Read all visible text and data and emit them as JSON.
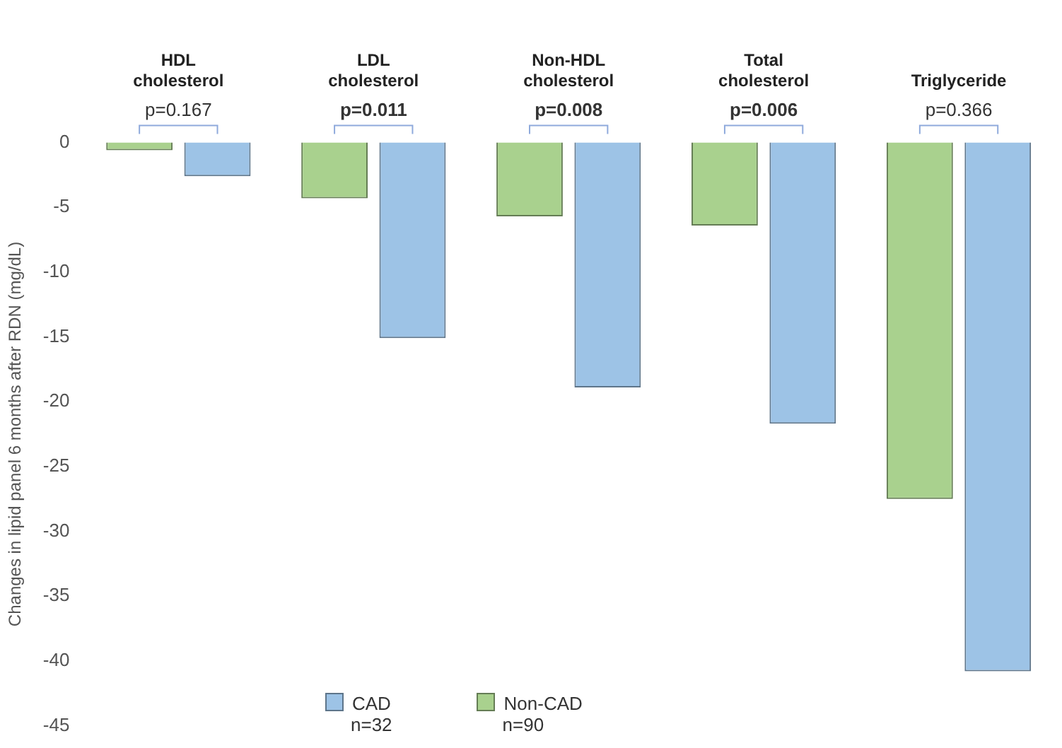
{
  "chart_data": {
    "type": "bar",
    "ylabel": "Changes in lipid panel 6 months after RDN (mg/dL)",
    "categories": [
      "HDL cholesterol",
      "LDL cholesterol",
      "Non-HDL cholesterol",
      "Total cholesterol",
      "Triglyceride"
    ],
    "series": [
      {
        "name": "Non-CAD",
        "color": "#a9d18e",
        "values": [
          -0.6,
          -4.3,
          -5.7,
          -6.4,
          -27.5
        ]
      },
      {
        "name": "CAD",
        "color": "#9dc3e6",
        "values": [
          -2.6,
          -15.1,
          -18.9,
          -21.7,
          -40.8
        ]
      }
    ],
    "ylim": [
      -45,
      0
    ],
    "yticks": [
      -45,
      -40,
      -35,
      -30,
      -25,
      -20,
      -15,
      -10,
      -5,
      0
    ],
    "grid": false,
    "legend": "bottom",
    "annotations": [
      "p=0.167",
      "p=0.011",
      "p=0.008",
      "p=0.006",
      "p=0.366",
      "n=90",
      "n=32"
    ]
  }
}
